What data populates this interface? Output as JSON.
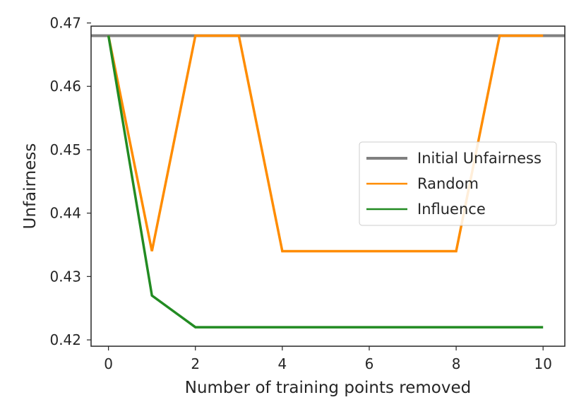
{
  "chart_data": {
    "type": "line",
    "xlabel": "Number of training points removed",
    "ylabel": "Unfairness",
    "xlim": [
      -0.4,
      10.5
    ],
    "ylim": [
      0.419,
      0.4695
    ],
    "x_ticks": [
      0,
      2,
      4,
      6,
      8,
      10
    ],
    "x_tick_labels": [
      "0",
      "2",
      "4",
      "6",
      "8",
      "10"
    ],
    "y_ticks": [
      0.42,
      0.43,
      0.44,
      0.45,
      0.46,
      0.47
    ],
    "y_tick_labels": [
      "0.42",
      "0.43",
      "0.44",
      "0.45",
      "0.46",
      "0.47"
    ],
    "grid": false,
    "legend_position": "center-right",
    "x": [
      0,
      1,
      2,
      3,
      4,
      5,
      6,
      7,
      8,
      9,
      10
    ],
    "series": [
      {
        "name": "Initial Unfairness",
        "kind": "hline",
        "value": 0.468,
        "color": "#808080"
      },
      {
        "name": "Random",
        "values": [
          0.468,
          0.434,
          0.468,
          0.468,
          0.434,
          0.434,
          0.434,
          0.434,
          0.434,
          0.468,
          0.468
        ],
        "color": "#ff8c00"
      },
      {
        "name": "Influence",
        "values": [
          0.468,
          0.427,
          0.422,
          0.422,
          0.422,
          0.422,
          0.422,
          0.422,
          0.422,
          0.422,
          0.422
        ],
        "color": "#228b22"
      }
    ]
  }
}
